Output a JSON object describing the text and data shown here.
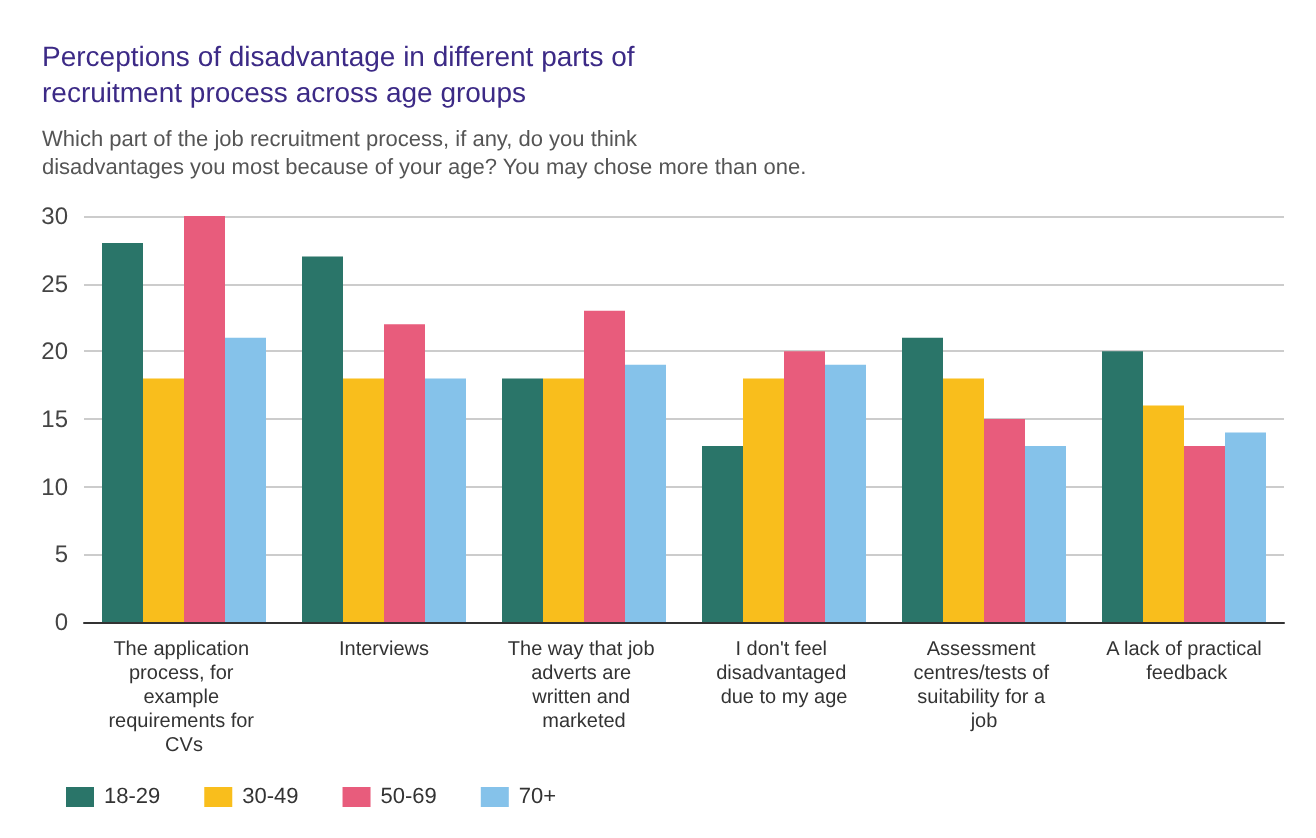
{
  "chart_data": {
    "type": "bar",
    "title": "Perceptions of disadvantage in different parts of recruitment process across age groups",
    "subtitle": "Which part of the job recruitment process, if any, do you think disadvantages you most because of your age? You may chose more than one.",
    "categories": [
      "The application process, for example requirements for CVs",
      "Interviews",
      "The way that job adverts are written and marketed",
      "I don't feel disadvantaged due to my age",
      "Assessment centres/tests of suitability for a job",
      "A lack of practical feedback"
    ],
    "series": [
      {
        "name": "18-29",
        "color": "#2a7569",
        "values": [
          28,
          27,
          18,
          13,
          21,
          20
        ]
      },
      {
        "name": "30-49",
        "color": "#f9be1c",
        "values": [
          18,
          18,
          18,
          18,
          18,
          16
        ]
      },
      {
        "name": "50-69",
        "color": "#e85c7c",
        "values": [
          30,
          22,
          23,
          20,
          15,
          13
        ]
      },
      {
        "name": "70+",
        "color": "#85c2ea",
        "values": [
          21,
          18,
          19,
          19,
          13,
          14
        ]
      }
    ],
    "ylim": [
      0,
      30
    ],
    "yticks": [
      0,
      5,
      10,
      15,
      20,
      25,
      30
    ],
    "grid": "y",
    "legend": "bottom left"
  }
}
